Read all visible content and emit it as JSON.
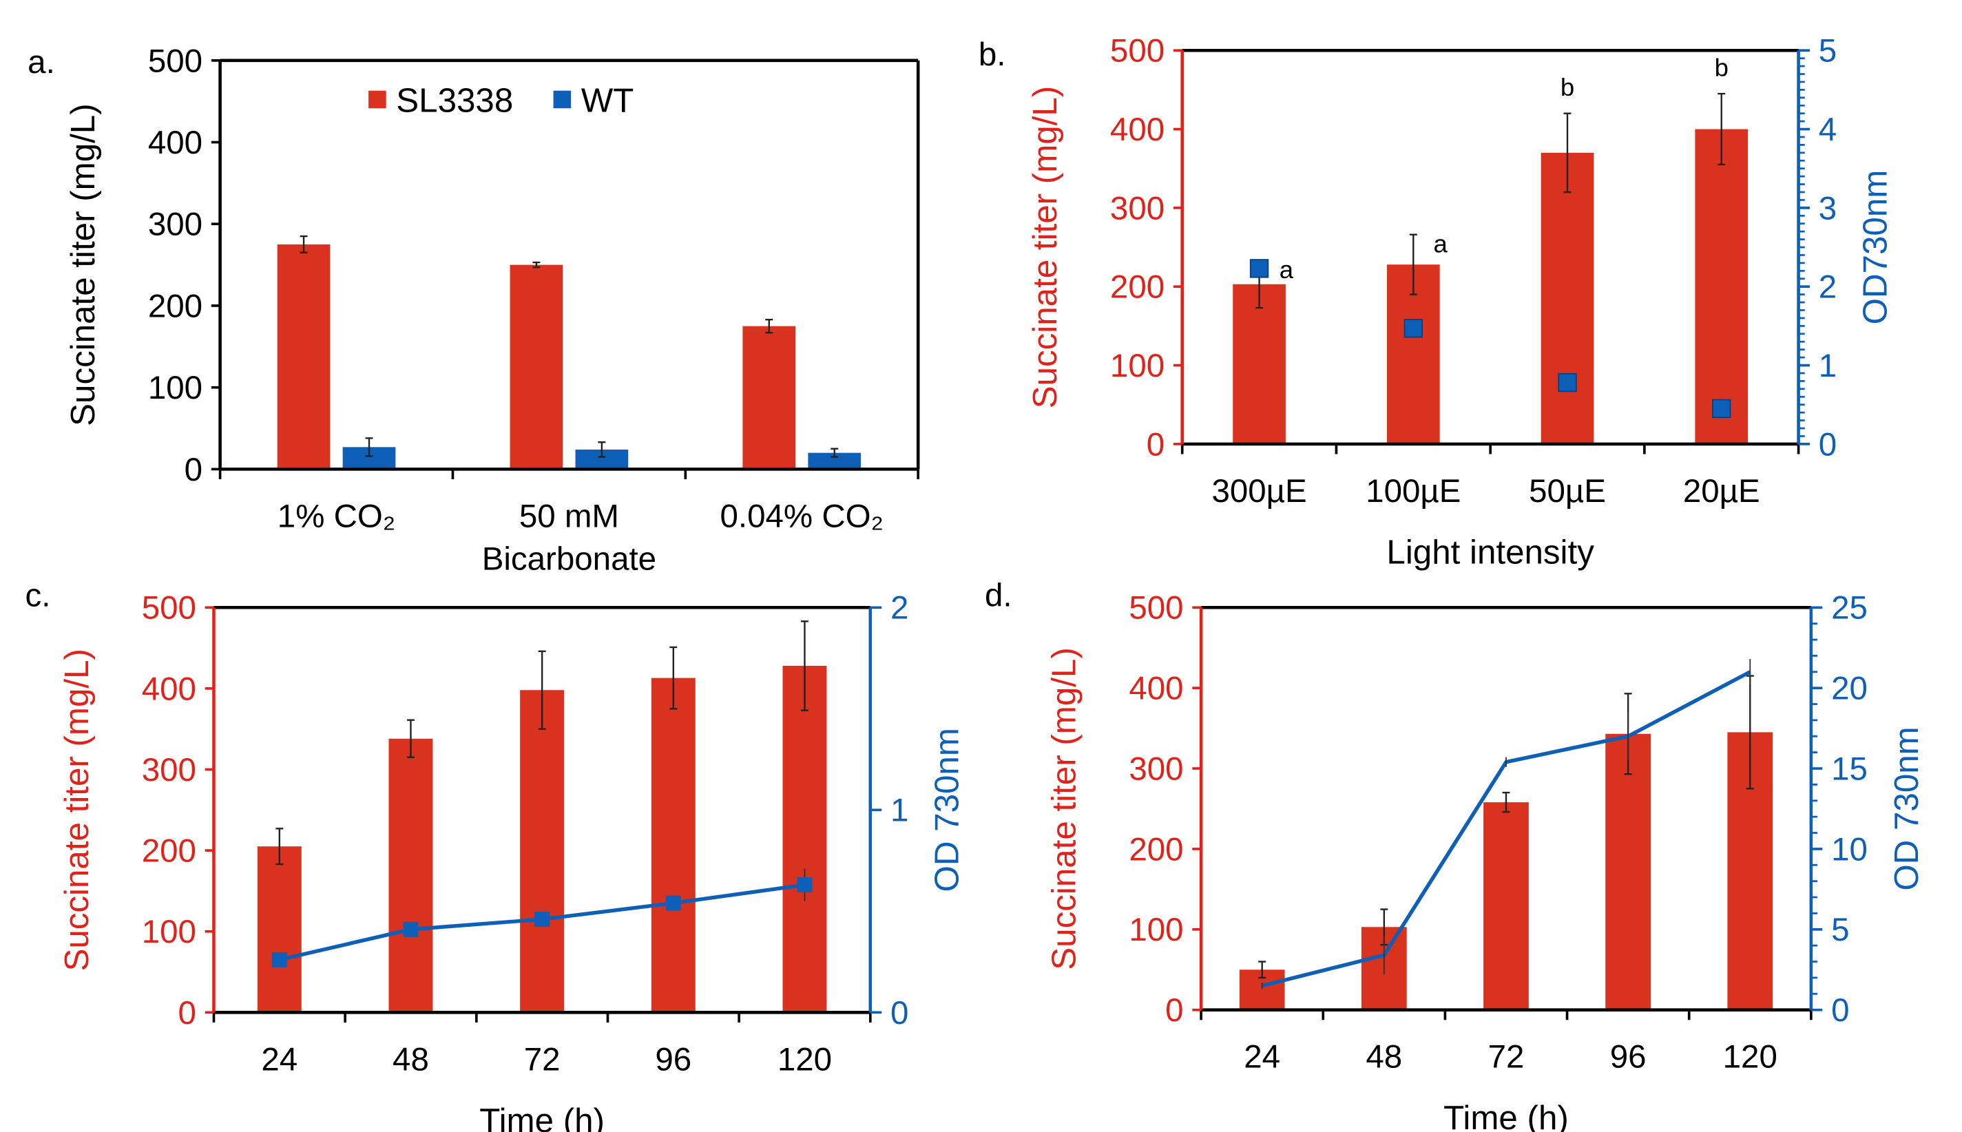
{
  "colors": {
    "bar": "#d9321f",
    "od": "#0d5fb8",
    "red_axis": "#e0231a",
    "blue_axis": "#0d5fb8"
  },
  "chart_data": [
    {
      "panel_label": "a.",
      "type": "bar",
      "ylabel": "Succinate titer (mg/L)",
      "ylim": [
        0,
        500
      ],
      "yticks": [
        "0",
        "100",
        "200",
        "300",
        "400",
        "500"
      ],
      "categories": [
        [
          "1% CO₂"
        ],
        [
          "50 mM",
          "Bicarbonate"
        ],
        [
          "0.04% CO₂"
        ]
      ],
      "legend": {
        "placement": "top-center",
        "entries": [
          "SL3338",
          "WT"
        ]
      },
      "series": [
        {
          "name": "SL3338",
          "values": [
            275,
            250,
            175
          ],
          "errors": [
            10,
            3,
            8
          ]
        },
        {
          "name": "WT",
          "values": [
            27,
            24,
            20
          ],
          "errors": [
            11,
            9,
            5
          ]
        }
      ]
    },
    {
      "panel_label": "b.",
      "type": "bar",
      "xlabel": "Light intensity",
      "ylabel": "Succinate titer (mg/L)",
      "y2label": "OD730nm",
      "ylim": [
        0,
        500
      ],
      "y2lim": [
        0,
        5
      ],
      "yticks": [
        "0",
        "100",
        "200",
        "300",
        "400",
        "500"
      ],
      "y2ticks": [
        "0",
        "1",
        "2",
        "3",
        "4",
        "5"
      ],
      "categories": [
        "300µE",
        "100µE",
        "50µE",
        "20µE"
      ],
      "series": [
        {
          "name": "Succinate titer",
          "values": [
            203,
            228,
            370,
            400
          ],
          "errors": [
            30,
            38,
            50,
            45
          ]
        },
        {
          "name": "OD730nm",
          "type": "scatter",
          "values": [
            2.23,
            1.47,
            0.78,
            0.45
          ]
        }
      ],
      "annotations": [
        "a",
        "a",
        "b",
        "b"
      ]
    },
    {
      "panel_label": "c.",
      "type": "bar",
      "xlabel": "Time (h)",
      "ylabel": "Succinate titer (mg/L)",
      "y2label": "OD 730nm",
      "ylim": [
        0,
        500
      ],
      "y2lim": [
        0,
        2
      ],
      "yticks": [
        "0",
        "100",
        "200",
        "300",
        "400",
        "500"
      ],
      "y2ticks": [
        "0",
        "1",
        "2"
      ],
      "categories": [
        "24",
        "48",
        "72",
        "96",
        "120"
      ],
      "series": [
        {
          "name": "Succinate titer",
          "values": [
            205,
            338,
            398,
            413,
            428
          ],
          "errors": [
            22,
            23,
            48,
            38,
            55
          ]
        },
        {
          "name": "OD 730nm",
          "type": "line",
          "values": [
            0.26,
            0.41,
            0.46,
            0.54,
            0.63
          ],
          "errors": [
            0.02,
            0.02,
            0.02,
            0.03,
            0.08
          ]
        }
      ]
    },
    {
      "panel_label": "d.",
      "type": "bar",
      "xlabel": "Time (h)",
      "ylabel": "Succinate titer (mg/L)",
      "y2label": "OD 730nm",
      "ylim": [
        0,
        500
      ],
      "y2lim": [
        0,
        25
      ],
      "yticks": [
        "0",
        "100",
        "200",
        "300",
        "400",
        "500"
      ],
      "y2ticks": [
        "0",
        "5",
        "10",
        "15",
        "20",
        "25"
      ],
      "categories": [
        "24",
        "48",
        "72",
        "96",
        "120"
      ],
      "series": [
        {
          "name": "Succinate titer",
          "values": [
            50,
            103,
            258,
            343,
            345
          ],
          "errors": [
            10,
            22,
            12,
            50,
            70
          ]
        },
        {
          "name": "OD 730nm",
          "type": "line",
          "values": [
            1.5,
            3.4,
            15.4,
            17.0,
            21.0
          ],
          "errors": [
            0.2,
            1.2,
            0.3,
            1.5,
            0.8
          ]
        }
      ]
    }
  ]
}
